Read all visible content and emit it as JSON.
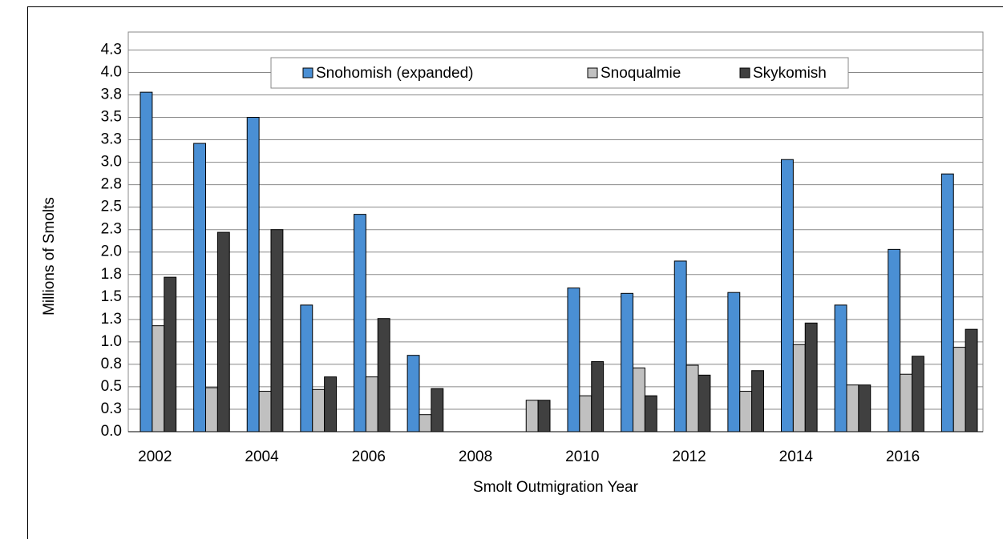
{
  "chart_data": {
    "type": "bar",
    "y_label": "Millions of Smolts",
    "x_label": "Smolt Outmigration Year",
    "categories": [
      "2002",
      null,
      "2004",
      null,
      "2006",
      null,
      "2008",
      null,
      "2010",
      null,
      "2012",
      null,
      "2014",
      null,
      "2016",
      null
    ],
    "series": [
      {
        "name": "Snohomish (expanded)",
        "color": "#4a8fd4",
        "values": [
          3.78,
          3.21,
          3.5,
          1.41,
          2.42,
          0.85,
          0,
          0,
          1.6,
          1.54,
          1.9,
          1.55,
          3.03,
          1.41,
          2.03,
          2.87
        ]
      },
      {
        "name": "Snoqualmie",
        "color": "#c0c0c0",
        "values": [
          1.18,
          0.49,
          0.45,
          0.47,
          0.61,
          0.19,
          0,
          0.35,
          0.4,
          0.71,
          0.74,
          0.45,
          0.97,
          0.52,
          0.64,
          0.94
        ]
      },
      {
        "name": "Skykomish",
        "color": "#404040",
        "values": [
          1.72,
          2.22,
          2.25,
          0.61,
          1.26,
          0.48,
          0,
          0.35,
          0.78,
          0.4,
          0.63,
          0.68,
          1.21,
          0.52,
          0.84,
          1.14
        ]
      }
    ],
    "ylim": [
      0,
      4.45
    ],
    "yticks": [
      {
        "value": 0,
        "label": "0.0"
      },
      {
        "value": 0.25,
        "label": "0.3"
      },
      0.5,
      {
        "value": 0.75,
        "label": "0.8"
      },
      {
        "value": 1,
        "label": "1.0"
      },
      {
        "value": 1.25,
        "label": "1.3"
      },
      1.5,
      {
        "value": 1.75,
        "label": "1.8"
      },
      {
        "value": 2,
        "label": "2.0"
      },
      {
        "value": 2.25,
        "label": "2.3"
      },
      2.5,
      {
        "value": 2.75,
        "label": "2.8"
      },
      {
        "value": 3,
        "label": "3.0"
      },
      {
        "value": 3.25,
        "label": "3.3"
      },
      3.5,
      {
        "value": 3.75,
        "label": "3.8"
      },
      {
        "value": 4,
        "label": "4.0"
      },
      {
        "value": 4.25,
        "label": "4.3"
      }
    ],
    "grid": true,
    "legend": "top"
  }
}
